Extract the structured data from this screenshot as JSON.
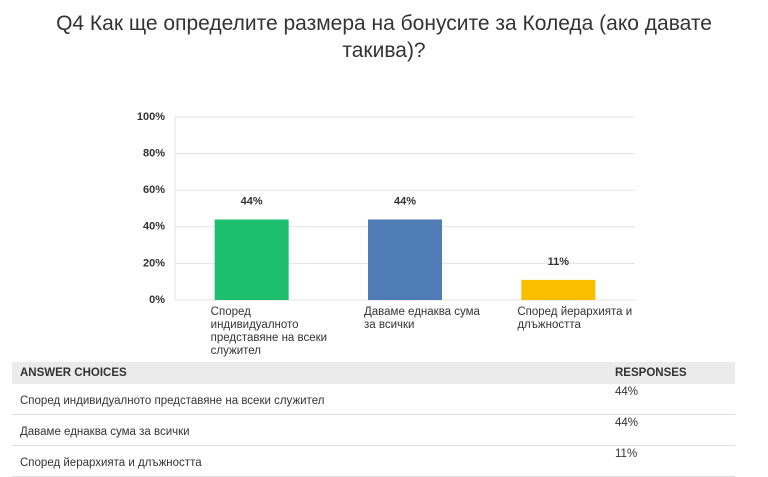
{
  "chart_data": {
    "type": "bar",
    "title": "Q4 Как ще определите размера на бонусите за Коледа (ако давате такива)?",
    "categories": [
      "Според индивидуалното представяне на всеки служител",
      "Даваме еднаква сума за всички",
      "Според йерархията и длъжността"
    ],
    "values": [
      44,
      44,
      11
    ],
    "value_labels": [
      "44%",
      "44%",
      "11%"
    ],
    "colors": [
      "#1dbf6f",
      "#507cb6",
      "#f9be00"
    ],
    "ylim": [
      0,
      100
    ],
    "yticks": [
      {
        "value": 0,
        "label": "0%"
      },
      {
        "value": 20,
        "label": "20%"
      },
      {
        "value": 40,
        "label": "40%"
      },
      {
        "value": 60,
        "label": "60%"
      },
      {
        "value": 80,
        "label": "80%"
      },
      {
        "value": 100,
        "label": "100%"
      }
    ],
    "grid": true
  },
  "table": {
    "headers": [
      "ANSWER CHOICES",
      "RESPONSES"
    ],
    "rows": [
      [
        "Според индивидуалното представяне на всеки служител",
        "44%"
      ],
      [
        "Даваме еднаква сума за всички",
        "44%"
      ],
      [
        "Според йерархията и длъжността",
        "11%"
      ]
    ]
  }
}
